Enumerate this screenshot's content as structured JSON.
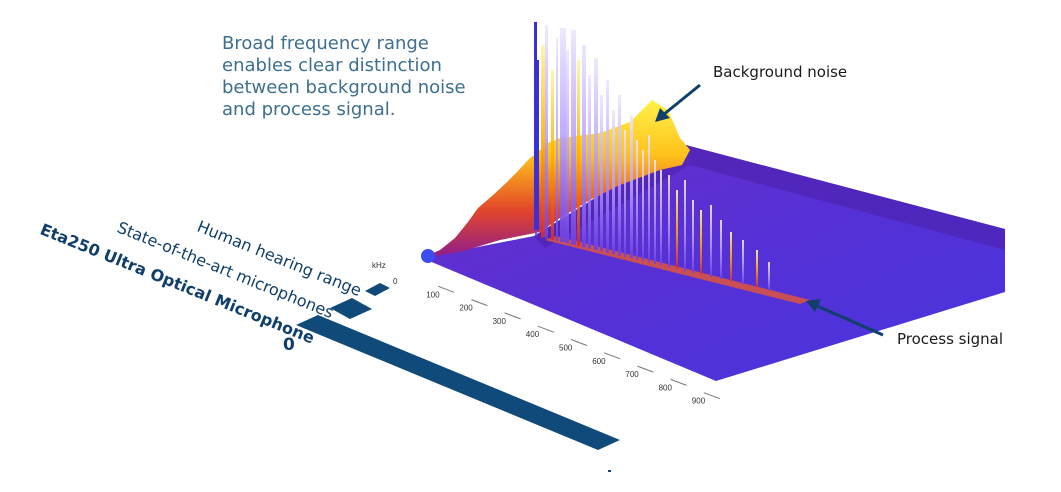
{
  "headline": [
    "Broad frequency range",
    "enables clear distinction",
    "between background noise",
    "and process signal."
  ],
  "callouts": {
    "background_noise": "Background noise",
    "process_signal": "Process signal"
  },
  "ranges": {
    "human_hearing": "Human hearing range",
    "state_of_the_art": "State-of-the-art microphones",
    "eta250": "Eta250 Ultra Optical Microphone",
    "zero": "0"
  },
  "axis": {
    "unit": "kHz",
    "ticks": [
      "0",
      "100",
      "200",
      "300",
      "400",
      "500",
      "600",
      "700",
      "800",
      "900"
    ]
  },
  "colors": {
    "navy": "#0f4a7a",
    "headline": "#3d6f90",
    "surface": "#5a2ad0",
    "noise_yellow": "#ffe23a"
  }
}
